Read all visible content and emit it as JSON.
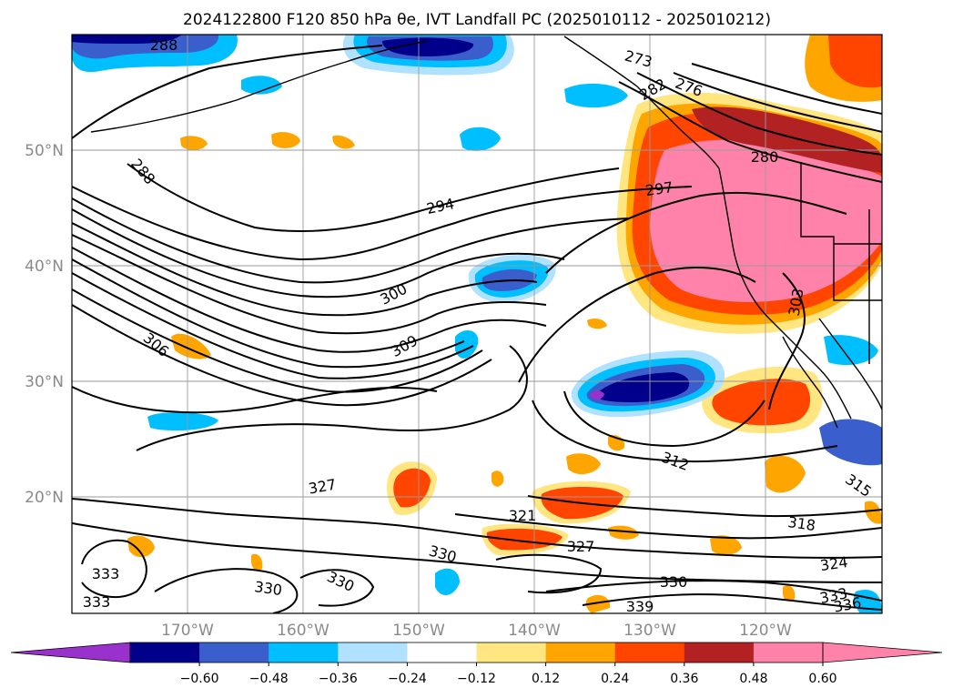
{
  "title": "2024122800 F120 850 hPa θe, IVT Landfall PC (2025010112 - 2025010212)",
  "map": {
    "lat_labels": [
      "50°N",
      "40°N",
      "30°N",
      "20°N"
    ],
    "lon_labels": [
      "170°W",
      "160°W",
      "150°W",
      "140°W",
      "130°W",
      "120°W"
    ],
    "contour_labels": [
      "288",
      "288",
      "294",
      "297",
      "300",
      "306",
      "309",
      "312",
      "315",
      "318",
      "321",
      "324",
      "327",
      "327",
      "330",
      "330",
      "330",
      "330",
      "333",
      "333",
      "333",
      "336",
      "339",
      "276",
      "280",
      "273",
      "282",
      "303"
    ]
  },
  "colorbar": {
    "tick_labels": [
      "−0.60",
      "−0.48",
      "−0.36",
      "−0.24",
      "−0.12",
      "0.12",
      "0.24",
      "0.36",
      "0.48",
      "0.60"
    ],
    "colors": [
      "#9932cc",
      "#00008b",
      "#3a5fcd",
      "#00bfff",
      "#b0e2ff",
      "#ffffff",
      "#ffe680",
      "#ffa500",
      "#ff4500",
      "#b22222",
      "#ff82ab",
      "#ff82ab"
    ]
  }
}
